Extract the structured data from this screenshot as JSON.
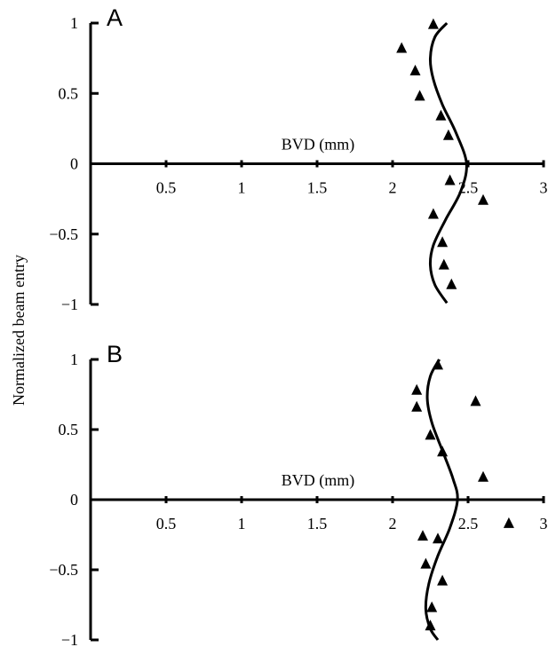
{
  "ylabel": "Normalized beam entry",
  "chart_data": [
    {
      "type": "scatter",
      "panel": "A",
      "xlabel": "BVD (mm)",
      "ylabel": "Normalized beam entry",
      "xlim": [
        0,
        3
      ],
      "ylim": [
        -1,
        1
      ],
      "x_ticks": [
        "0.5",
        "1",
        "1.5",
        "2",
        "2.5",
        "3"
      ],
      "y_ticks": [
        "1",
        "0.5",
        "0",
        "−0.5",
        "−1"
      ],
      "grid": false,
      "series": [
        {
          "marker": "triangle",
          "points": [
            {
              "x": 2.27,
              "y": 0.99
            },
            {
              "x": 2.06,
              "y": 0.82
            },
            {
              "x": 2.15,
              "y": 0.66
            },
            {
              "x": 2.18,
              "y": 0.48
            },
            {
              "x": 2.32,
              "y": 0.34
            },
            {
              "x": 2.37,
              "y": 0.2
            },
            {
              "x": 2.38,
              "y": -0.12
            },
            {
              "x": 2.6,
              "y": -0.26
            },
            {
              "x": 2.27,
              "y": -0.36
            },
            {
              "x": 2.33,
              "y": -0.56
            },
            {
              "x": 2.34,
              "y": -0.72
            },
            {
              "x": 2.39,
              "y": -0.86
            }
          ]
        },
        {
          "type": "line",
          "curve": [
            {
              "x": 2.36,
              "y": 1.0
            },
            {
              "x": 2.28,
              "y": 0.9
            },
            {
              "x": 2.25,
              "y": 0.75
            },
            {
              "x": 2.27,
              "y": 0.6
            },
            {
              "x": 2.33,
              "y": 0.42
            },
            {
              "x": 2.42,
              "y": 0.22
            },
            {
              "x": 2.49,
              "y": 0.0
            },
            {
              "x": 2.45,
              "y": -0.2
            },
            {
              "x": 2.35,
              "y": -0.4
            },
            {
              "x": 2.27,
              "y": -0.58
            },
            {
              "x": 2.25,
              "y": -0.72
            },
            {
              "x": 2.28,
              "y": -0.86
            },
            {
              "x": 2.36,
              "y": -0.99
            }
          ]
        }
      ]
    },
    {
      "type": "scatter",
      "panel": "B",
      "xlabel": "BVD (mm)",
      "ylabel": "Normalized beam entry",
      "xlim": [
        0,
        3
      ],
      "ylim": [
        -1,
        1
      ],
      "x_ticks": [
        "0.5",
        "1",
        "1.5",
        "2",
        "2.5",
        "3"
      ],
      "y_ticks": [
        "1",
        "0.5",
        "0",
        "−0.5",
        "−1"
      ],
      "grid": false,
      "series": [
        {
          "marker": "triangle",
          "points": [
            {
              "x": 2.3,
              "y": 0.96
            },
            {
              "x": 2.16,
              "y": 0.78
            },
            {
              "x": 2.16,
              "y": 0.66
            },
            {
              "x": 2.55,
              "y": 0.7
            },
            {
              "x": 2.25,
              "y": 0.46
            },
            {
              "x": 2.33,
              "y": 0.34
            },
            {
              "x": 2.6,
              "y": 0.16
            },
            {
              "x": 2.77,
              "y": -0.17
            },
            {
              "x": 2.2,
              "y": -0.26
            },
            {
              "x": 2.3,
              "y": -0.28
            },
            {
              "x": 2.22,
              "y": -0.46
            },
            {
              "x": 2.33,
              "y": -0.58
            },
            {
              "x": 2.26,
              "y": -0.77
            },
            {
              "x": 2.25,
              "y": -0.9
            }
          ]
        },
        {
          "type": "line",
          "curve": [
            {
              "x": 2.31,
              "y": 1.0
            },
            {
              "x": 2.25,
              "y": 0.88
            },
            {
              "x": 2.23,
              "y": 0.72
            },
            {
              "x": 2.26,
              "y": 0.55
            },
            {
              "x": 2.33,
              "y": 0.35
            },
            {
              "x": 2.4,
              "y": 0.15
            },
            {
              "x": 2.43,
              "y": 0.0
            },
            {
              "x": 2.38,
              "y": -0.2
            },
            {
              "x": 2.3,
              "y": -0.4
            },
            {
              "x": 2.24,
              "y": -0.6
            },
            {
              "x": 2.22,
              "y": -0.78
            },
            {
              "x": 2.25,
              "y": -0.92
            },
            {
              "x": 2.3,
              "y": -1.0
            }
          ]
        }
      ]
    }
  ]
}
